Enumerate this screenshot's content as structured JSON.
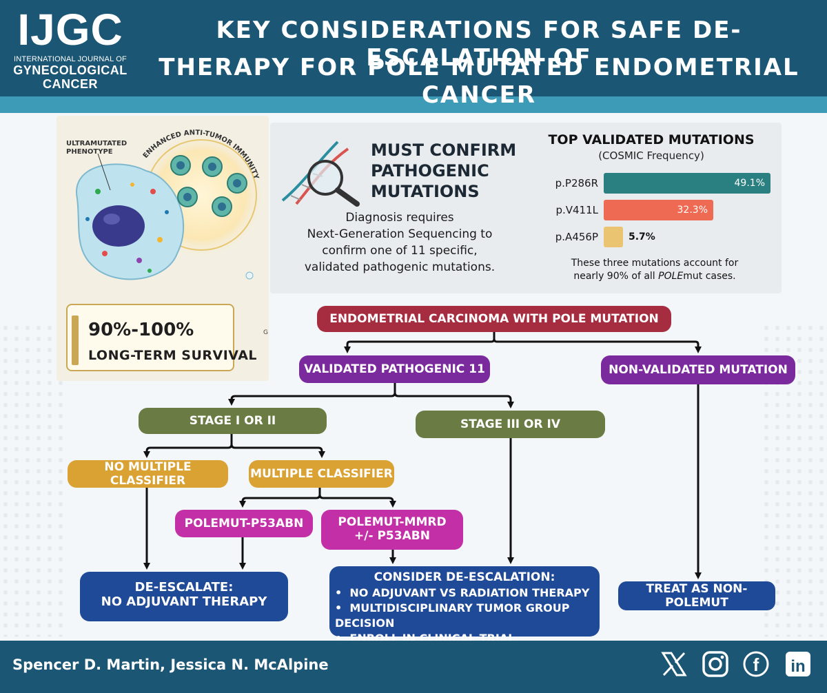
{
  "header": {
    "logo_main": "IJGC",
    "logo_line1": "INTERNATIONAL JOURNAL OF",
    "logo_line2": "GYNECOLOGICAL",
    "logo_line3": "CANCER",
    "title_line1": "KEY CONSIDERATIONS FOR SAFE DE-ESCALATION OF",
    "title_line2": "THERAPY FOR POLE MUTATED ENDOMETRIAL CANCER"
  },
  "illustration": {
    "label_line1": "ULTRAMUTATED",
    "label_line2": "PHENOTYPE",
    "arc_label": "ENHANCED ANTI-TUMOR IMMUNITY",
    "survival_pct": "90%-100%",
    "survival_label": "LONG-TERM SURVIVAL",
    "stray_letter": "G"
  },
  "confirm": {
    "title_line1": "MUST CONFIRM",
    "title_line2": "PATHOGENIC",
    "title_line3": "MUTATIONS",
    "desc_line1": "Diagnosis requires",
    "desc_line2": "Next-Generation Sequencing to",
    "desc_line3": "confirm one of 11 specific,",
    "desc_line4": "validated pathogenic mutations."
  },
  "chart_data": {
    "type": "bar",
    "title": "TOP VALIDATED MUTATIONS",
    "subtitle": "(COSMIC Frequency)",
    "categories": [
      "p.P286R",
      "p.V411L",
      "p.A456P"
    ],
    "values": [
      49.1,
      32.3,
      5.7
    ],
    "value_labels": [
      "49.1%",
      "32.3%",
      "5.7%"
    ],
    "colors": [
      "#2a7f80",
      "#ee6a53",
      "#ebc471"
    ],
    "xlim": [
      0,
      49.1
    ],
    "orientation": "horizontal",
    "note_line1": "These three mutations account for",
    "note_line2_prefix": "nearly 90% of all ",
    "note_line2_italic": "POLE",
    "note_line2_suffix": "mut cases."
  },
  "flow": {
    "root": "ENDOMETRIAL CARCINOMA WITH POLE MUTATION",
    "validated": "VALIDATED PATHOGENIC 11",
    "non_validated": "NON-VALIDATED MUTATION",
    "stage_early": "STAGE I OR II",
    "stage_late": "STAGE III OR IV",
    "no_multi": "NO MULTIPLE CLASSIFIER",
    "multi": "MULTIPLE CLASSIFIER",
    "p53abn": "POLEMUT-P53ABN",
    "mmrd_line1": "POLEMUT-MMRD",
    "mmrd_line2": "+/- P53ABN",
    "deescalate_line1": "DE-ESCALATE:",
    "deescalate_line2": "NO ADJUVANT THERAPY",
    "consider_title": "CONSIDER DE-ESCALATION:",
    "consider_items": [
      "NO ADJUVANT VS RADIATION THERAPY",
      "MULTIDISCIPLINARY TUMOR GROUP DECISION",
      "ENROLL IN CLINICAL TRIAL"
    ],
    "treat": "TREAT AS NON-POLEMUT"
  },
  "footer": {
    "authors": "Spencer D. Martin, Jessica N. McAlpine",
    "social_icons": [
      "x-icon",
      "instagram-icon",
      "facebook-icon",
      "linkedin-icon"
    ],
    "facebook_glyph": "f",
    "linkedin_glyph": "in"
  },
  "colors": {
    "header": "#1b5674",
    "strip": "#3d9bb8",
    "root": "#a62d40",
    "purple": "#7b2a9e",
    "green": "#6a7c43",
    "gold": "#d9a232",
    "magenta": "#c22fa6",
    "navy": "#1f4a97"
  }
}
